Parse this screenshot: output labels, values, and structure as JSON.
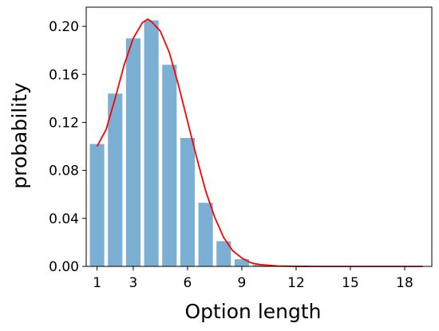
{
  "chart_data": {
    "type": "bar",
    "title": "",
    "xlabel": "Option length",
    "ylabel": "probability",
    "categories": [
      1,
      2,
      3,
      4,
      5,
      6,
      7,
      8,
      9,
      10,
      11,
      12,
      13,
      14,
      15,
      16,
      17,
      18,
      19
    ],
    "values": [
      0.102,
      0.144,
      0.19,
      0.205,
      0.168,
      0.107,
      0.053,
      0.021,
      0.006,
      0.0015,
      0.0004,
      0.0001,
      0.0,
      0.0,
      0.0,
      0.0,
      0.0,
      0.0,
      0.0
    ],
    "bar_color": "#7bafd4",
    "curve": {
      "color": "#ff0000",
      "x": [
        1,
        1.5,
        2,
        2.5,
        3,
        3.5,
        3.8,
        4,
        4.5,
        5,
        5.5,
        6,
        6.5,
        7,
        7.5,
        8,
        8.5,
        9,
        9.5,
        10,
        11,
        12,
        13,
        14,
        15,
        16,
        17,
        18,
        19
      ],
      "y": [
        0.1,
        0.114,
        0.14,
        0.168,
        0.19,
        0.203,
        0.206,
        0.204,
        0.196,
        0.178,
        0.151,
        0.121,
        0.091,
        0.063,
        0.041,
        0.024,
        0.013,
        0.007,
        0.003,
        0.0015,
        0.0003,
        5e-05,
        0.0,
        0.0,
        0.0,
        0.0,
        0.0,
        0.0,
        0.0
      ]
    },
    "xlim": [
      0.4,
      19.5
    ],
    "ylim": [
      0.0,
      0.216
    ],
    "xticks": [
      1,
      3,
      6,
      9,
      12,
      15,
      18
    ],
    "xtick_labels": [
      "1",
      "3",
      "6",
      "9",
      "12",
      "15",
      "18"
    ],
    "yticks": [
      0.0,
      0.04,
      0.08,
      0.12,
      0.16,
      0.2
    ],
    "ytick_labels": [
      "0.00",
      "0.04",
      "0.08",
      "0.12",
      "0.16",
      "0.20"
    ],
    "grid": false,
    "legend": "none"
  }
}
